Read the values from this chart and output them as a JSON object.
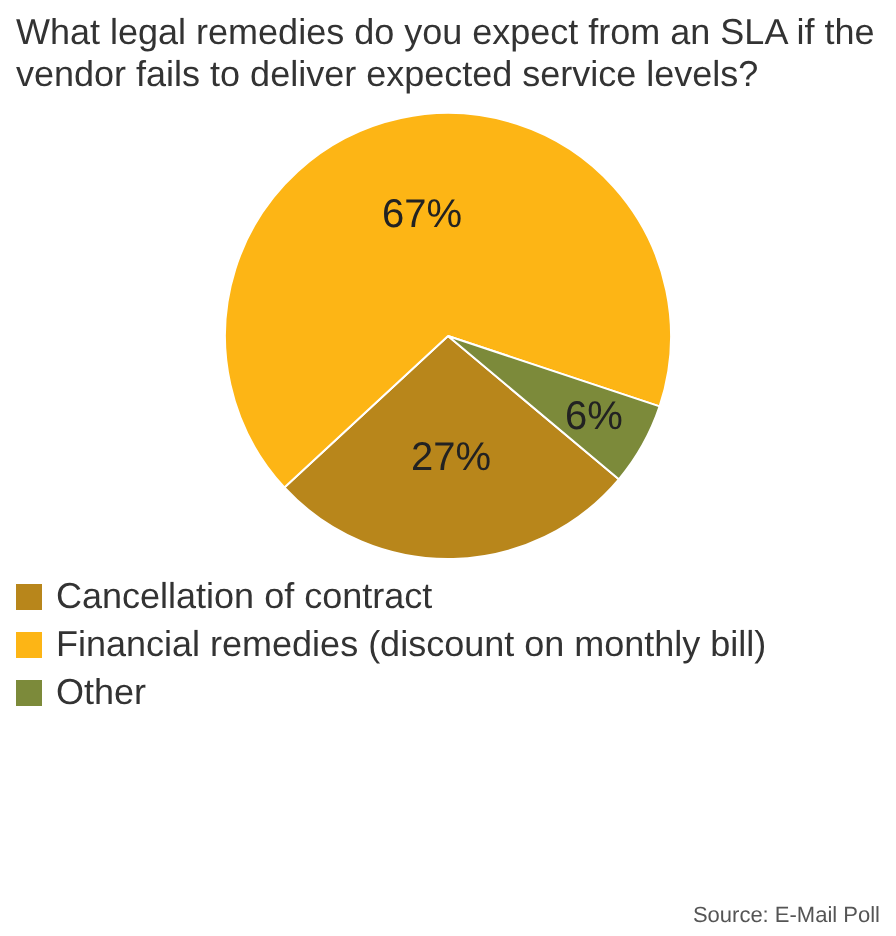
{
  "chart_data": {
    "type": "pie",
    "title": "What legal remedies do you expect from an SLA if the vendor fails to deliver expected service levels?",
    "categories": [
      "Cancellation of contract",
      "Financial remedies (discount on monthly bill)",
      "Other"
    ],
    "values": [
      27,
      67,
      6
    ],
    "colors": [
      "#b8861b",
      "#fdb515",
      "#7c8a3a"
    ],
    "value_labels": [
      "27%",
      "67%",
      "6%"
    ],
    "legend": "bottom",
    "annotations": [
      "Source: E-Mail Poll"
    ]
  }
}
